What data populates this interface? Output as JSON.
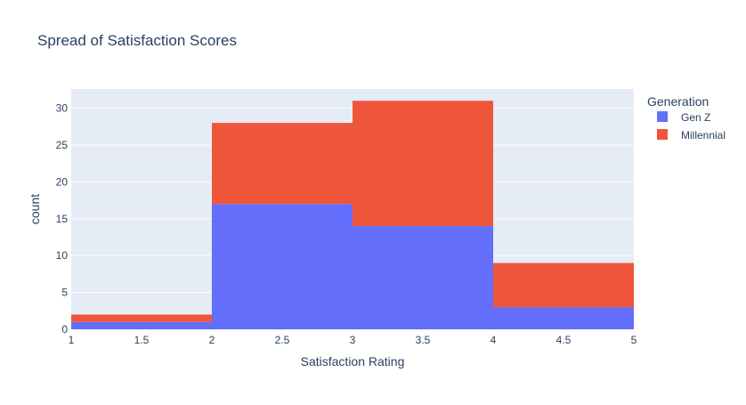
{
  "chart_data": {
    "type": "bar",
    "barmode": "stack",
    "title": "Spread of Satisfaction Scores",
    "xlabel": "Satisfaction Rating",
    "ylabel": "count",
    "xlim": [
      1,
      5
    ],
    "ylim": [
      0,
      32.6
    ],
    "x_ticks": [
      "1",
      "1.5",
      "2",
      "2.5",
      "3",
      "3.5",
      "4",
      "4.5",
      "5"
    ],
    "y_ticks": [
      "0",
      "5",
      "10",
      "15",
      "20",
      "25",
      "30"
    ],
    "bins": [
      [
        1,
        2
      ],
      [
        2,
        3
      ],
      [
        3,
        4
      ],
      [
        4,
        5
      ]
    ],
    "legend_title": "Generation",
    "legend_position": "right",
    "grid": true,
    "series": [
      {
        "name": "Gen Z",
        "color": "#636efa",
        "values": [
          1,
          17,
          14,
          3
        ]
      },
      {
        "name": "Millennial",
        "color": "#ef553b",
        "values": [
          1,
          11,
          17,
          6
        ]
      }
    ],
    "plot_bg": "#e5ecf6"
  }
}
